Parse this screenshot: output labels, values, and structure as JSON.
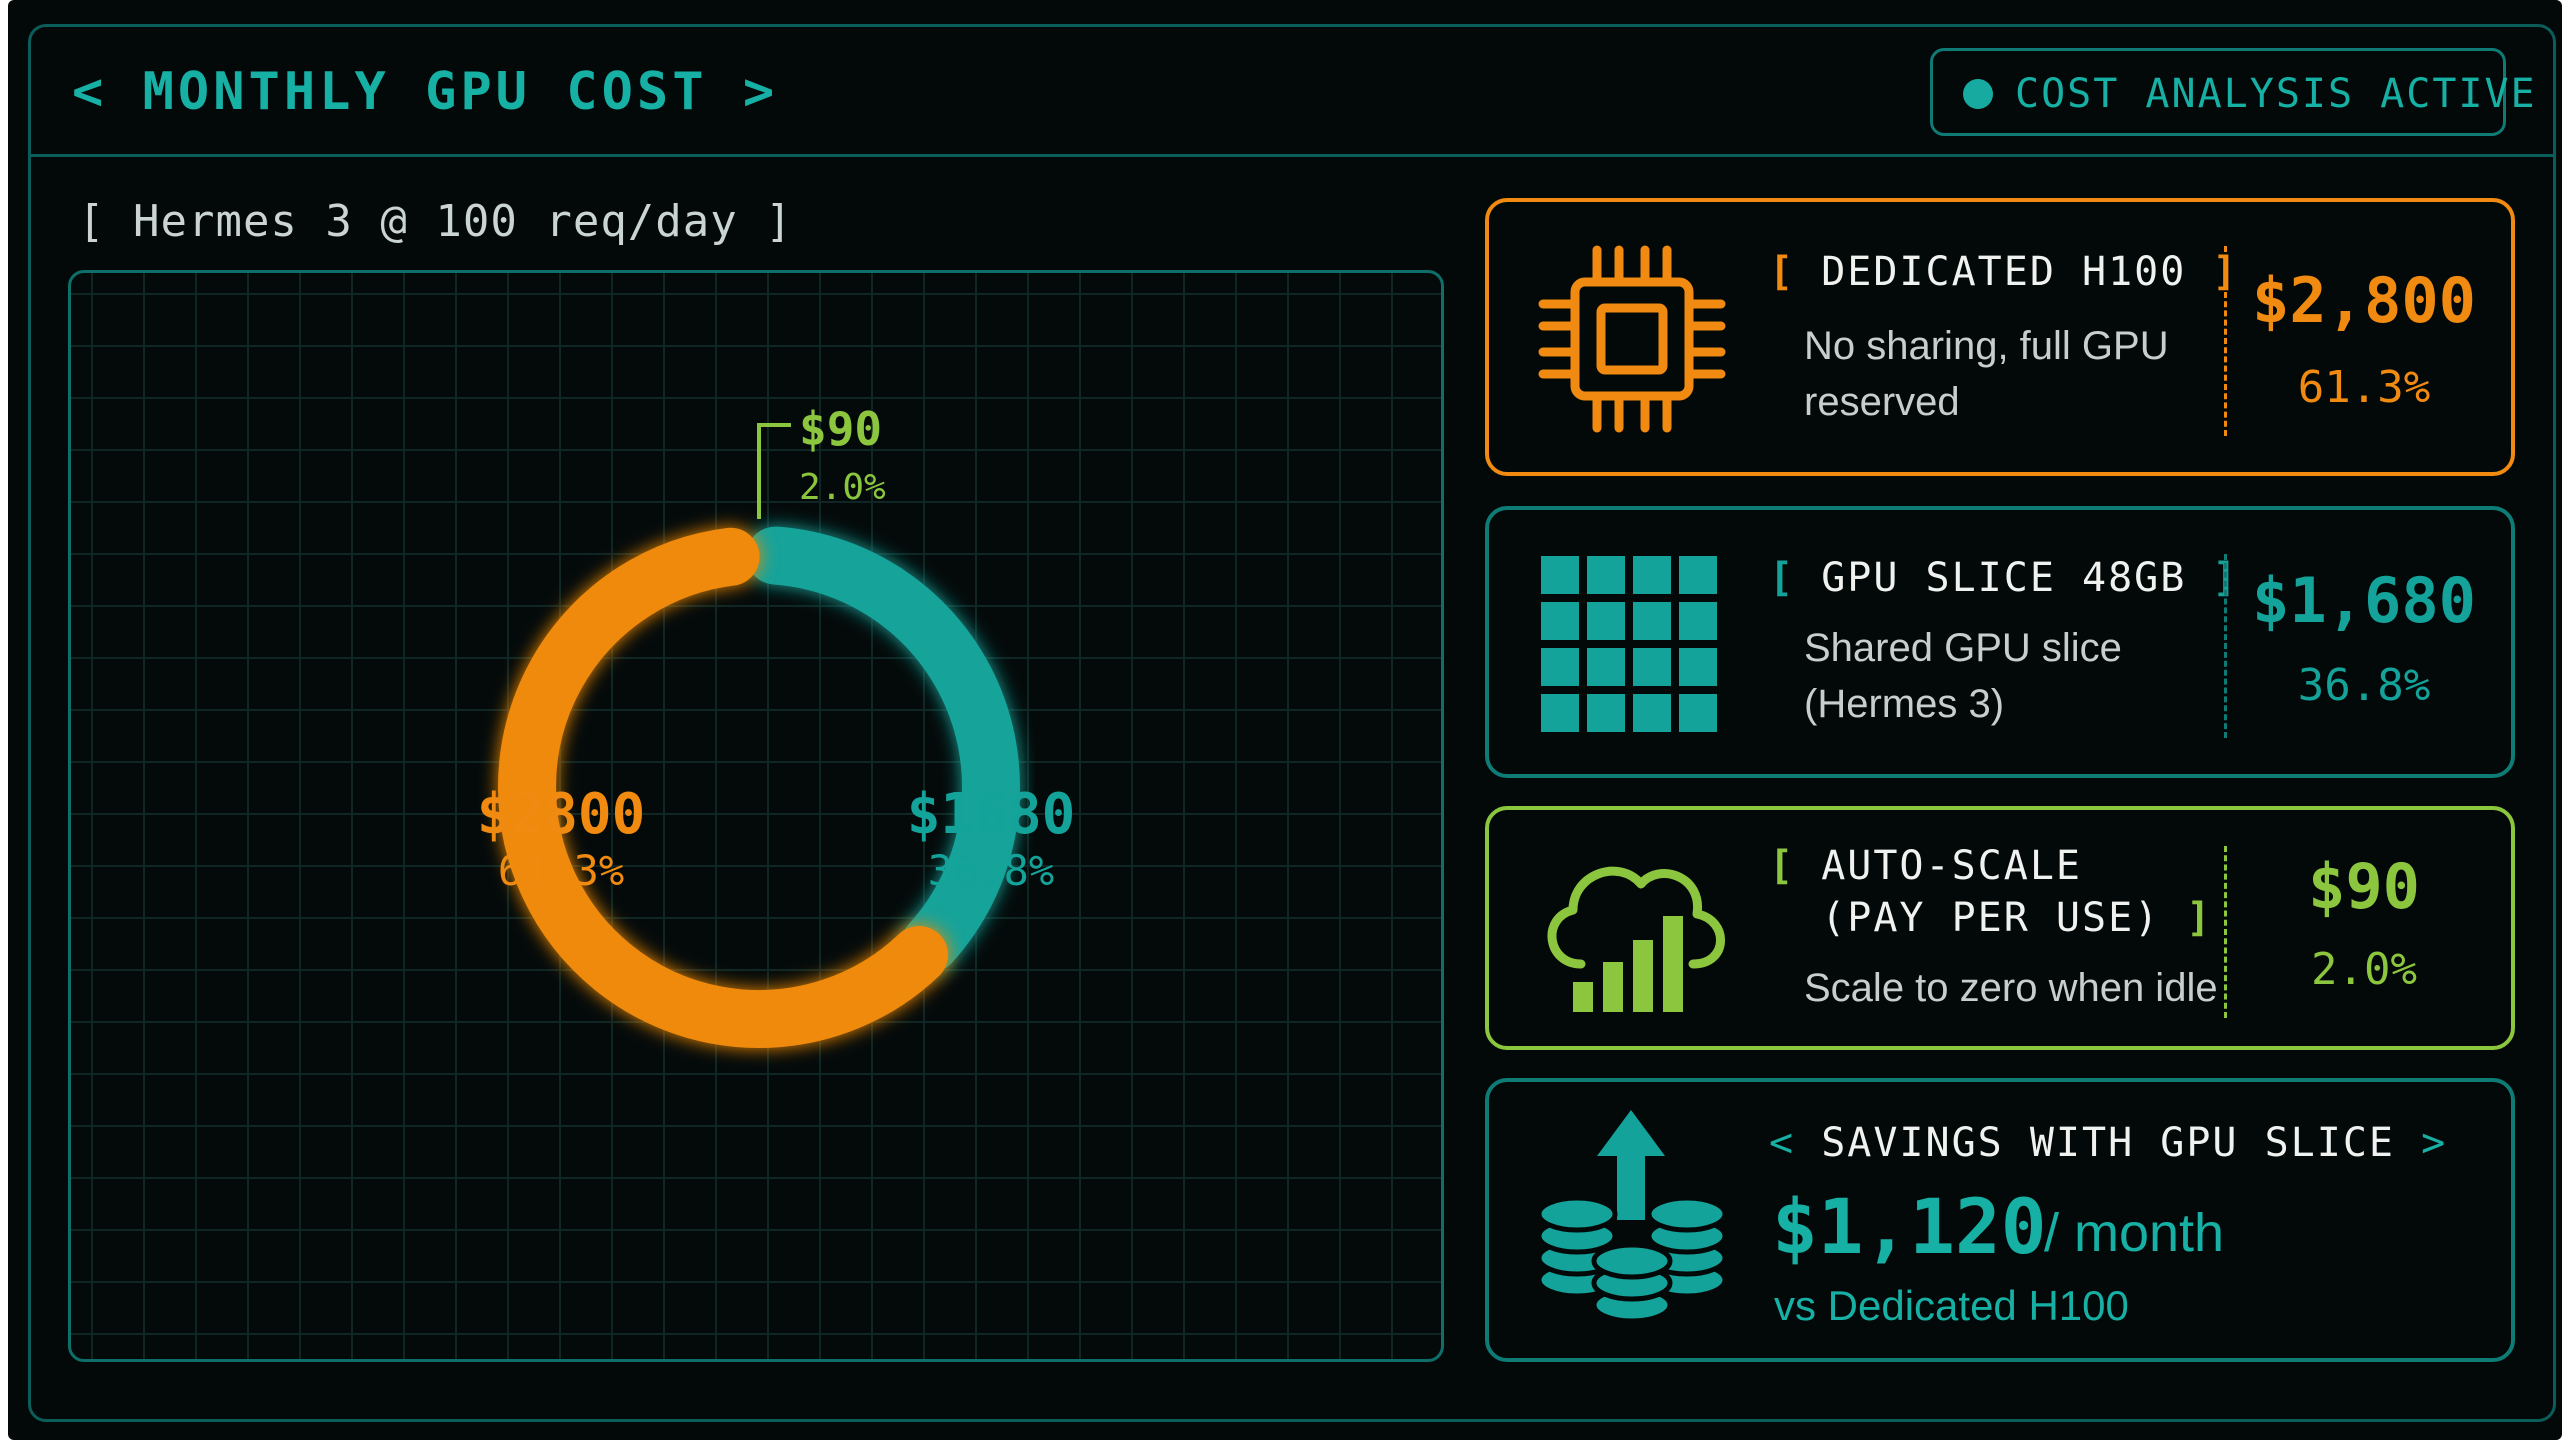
{
  "header": {
    "title": "< MONTHLY GPU COST >",
    "status": "COST ANALYSIS ACTIVE"
  },
  "subtitle": "[ Hermes 3 @ 100 req/day ]",
  "colors": {
    "dedicated": "#f08a10",
    "slice": "#14a39a",
    "autoscale": "#8cc63f",
    "frame": "#0e7b74"
  },
  "chart_data": {
    "type": "pie",
    "style": "donut",
    "labels": [
      "$2800",
      "$1680",
      "$90"
    ],
    "values": [
      2800,
      1680,
      90
    ],
    "percent_labels": [
      "61.3%",
      "36.8%",
      "2.0%"
    ],
    "colors": [
      "#f08a10",
      "#14a39a",
      "#8cc63f"
    ]
  },
  "cards": {
    "dedicated": {
      "title_open": "[",
      "title": "DEDICATED H100",
      "title_close": "]",
      "desc": "No sharing, full GPU reserved",
      "value": "$2,800",
      "percent": "61.3%",
      "icon": "chip-icon"
    },
    "slice": {
      "title_open": "[",
      "title": "GPU SLICE 48GB",
      "title_close": "]",
      "desc": "Shared GPU slice (Hermes 3)",
      "value": "$1,680",
      "percent": "36.8%",
      "icon": "grid-icon"
    },
    "autoscale": {
      "title_open": "[",
      "title_line1": "AUTO-SCALE",
      "title_line2": "(PAY PER USE)",
      "title_close": "]",
      "desc": "Scale to zero when idle",
      "value": "$90",
      "percent": "2.0%",
      "icon": "cloud-bars-icon"
    },
    "savings": {
      "title_open": "<",
      "title": "SAVINGS WITH GPU SLICE",
      "title_close": ">",
      "amount": "$1,120",
      "period": "/ month",
      "compare": "vs Dedicated H100",
      "icon": "coins-arrow-icon"
    }
  }
}
